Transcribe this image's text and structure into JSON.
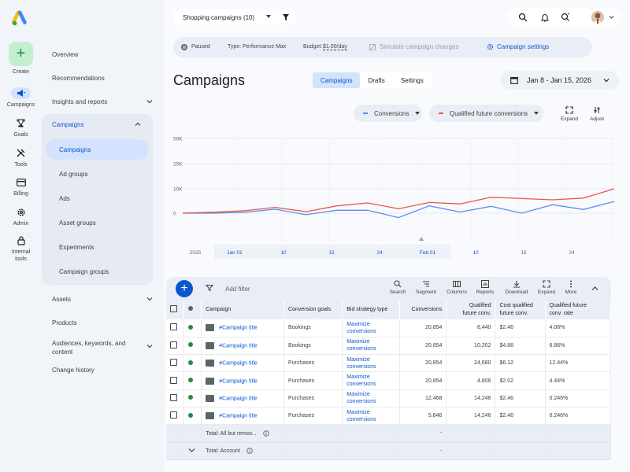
{
  "rail": {
    "create_label": "Create",
    "items": [
      {
        "label": "Campaigns",
        "icon": "megaphone-icon"
      },
      {
        "label": "Goals",
        "icon": "trophy-icon"
      },
      {
        "label": "Tools",
        "icon": "tools-icon"
      },
      {
        "label": "Billing",
        "icon": "credit-card-icon"
      },
      {
        "label": "Admin",
        "icon": "gear-icon"
      },
      {
        "label": "Internal tools",
        "icon": "lock-icon"
      }
    ]
  },
  "nav": {
    "overview": "Overview",
    "recommendations": "Recommendations",
    "insights": "Insights and reports",
    "campaigns_group": "Campaigns",
    "sub": [
      "Campaigns",
      "Ad groups",
      "Ads",
      "Asset groups",
      "Experiments",
      "Campaign groups"
    ],
    "assets": "Assets",
    "products": "Products",
    "audiences": "Audiences, keywords, and content",
    "change_history": "Change history"
  },
  "topbar": {
    "campaign_select": "Shopping campaigns (10)"
  },
  "status": {
    "paused": "Paused",
    "type": "Type: Performance Max",
    "budget_prefix": "Budget: ",
    "budget_value": "$1.00/day",
    "simulate": "Simulate campaign changes",
    "settings": "Campaign settings"
  },
  "page": {
    "title": "Campaigns",
    "tabs": [
      "Campaigns",
      "Drafts",
      "Settings"
    ],
    "date_range": "Jan 8 - Jan 15, 2026"
  },
  "metrics": {
    "m1": "Conversions",
    "m2": "Qualified future conversions",
    "expand": "Expand",
    "adjust": "Adjust"
  },
  "colors": {
    "series_blue": "#5b8def",
    "series_red": "#e8564a",
    "accent": "#0b57d0"
  },
  "chart_data": {
    "type": "line",
    "y_ticks": [
      "50K",
      "25K",
      "10K",
      "0"
    ],
    "x_ticks": [
      "2025",
      "Jan 01",
      "10",
      "15",
      "24",
      "Feb 01",
      "10",
      "15",
      "24"
    ],
    "series": [
      {
        "values": [
          0,
          0,
          400,
          1600,
          -600,
          1200,
          1200,
          -1800,
          3000,
          500,
          2800,
          0,
          3500,
          1500,
          4800
        ]
      },
      {
        "values": [
          0,
          400,
          1000,
          2400,
          600,
          3000,
          4200,
          1800,
          4400,
          3800,
          6500,
          6000,
          5500,
          6200,
          10000
        ]
      }
    ]
  },
  "table": {
    "add_filter": "Add filter",
    "tools": [
      "Search",
      "Segment",
      "Columns",
      "Reports",
      "Download",
      "Expand",
      "More"
    ],
    "headers": {
      "campaign": "Campaign",
      "goals": "Conversion goals",
      "bid": "Bid strategy type",
      "conversions": "Conversions",
      "qfc_1": "Qualified",
      "qfc_2": "future conv.",
      "cost_1": "Cost qualified",
      "cost_2": "future conv.",
      "rate_1": "Qualified future",
      "rate_2": "conv. rate"
    },
    "rows": [
      {
        "name": "#Campaign title",
        "goal": "Bookings",
        "bid1": "Maximize",
        "bid2": "conversions",
        "conv": "20,854",
        "qfc": "8,440",
        "cost": "$2.46",
        "rate": "4.06%"
      },
      {
        "name": "#Campaign title",
        "goal": "Bookings",
        "bid1": "Maximize",
        "bid2": "conversions",
        "conv": "20,854",
        "qfc": "10,202",
        "cost": "$4.88",
        "rate": "6.86%"
      },
      {
        "name": "#Campaign title",
        "goal": "Purchases",
        "bid1": "Maximize",
        "bid2": "conversions",
        "conv": "20,854",
        "qfc": "24,680",
        "cost": "$6.12",
        "rate": "12.44%"
      },
      {
        "name": "#Campaign title",
        "goal": "Purchases",
        "bid1": "Maximize",
        "bid2": "conversions",
        "conv": "20,854",
        "qfc": "4,806",
        "cost": "$2.02",
        "rate": "4.44%"
      },
      {
        "name": "#Campaign title",
        "goal": "Purchases",
        "bid1": "Maximize",
        "bid2": "conversions",
        "conv": "12,468",
        "qfc": "14,246",
        "cost": "$2.46",
        "rate": "0.246%"
      },
      {
        "name": "#Campaign title",
        "goal": "Purchases",
        "bid1": "Maximize",
        "bid2": "conversions",
        "conv": "5,846",
        "qfc": "14,246",
        "cost": "$2.46",
        "rate": "0.246%"
      }
    ],
    "total_removed": "Total: All but remov...",
    "total_account": "Total: Account",
    "dash": "-"
  }
}
